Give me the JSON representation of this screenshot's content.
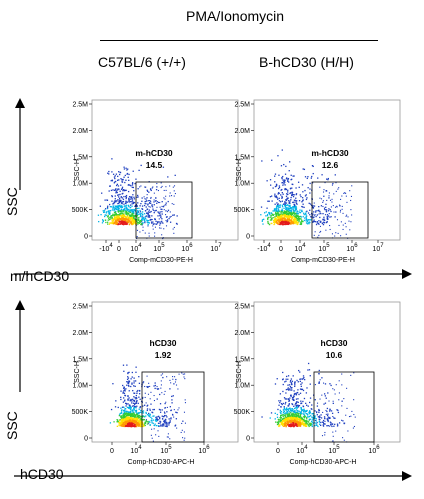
{
  "header": {
    "treatment": "PMA/Ionomycin",
    "col_left": "C57BL/6 (+/+)",
    "col_right": "B-hCD30 (H/H)"
  },
  "row_labels": {
    "top_y": "SSC",
    "top_x": "m/hCD30",
    "bottom_y": "SSC",
    "bottom_x": "hCD30"
  },
  "chart_data": [
    {
      "type": "scatter",
      "panel": "top-left",
      "gate_name": "m-hCD30",
      "gate_percent": "14.5",
      "xlabel": "Comp-mCD30-PE-H",
      "ylabel": "SSC-H",
      "yticks": [
        "2.5M",
        "2.0M",
        "1.5M",
        "1.0M",
        "500K",
        "0"
      ],
      "xticks": [
        "-10^4",
        "0",
        "10^4",
        "10^5",
        "10^6",
        "10^7"
      ]
    },
    {
      "type": "scatter",
      "panel": "top-right",
      "gate_name": "m-hCD30",
      "gate_percent": "12.6",
      "xlabel": "Comp-mCD30-PE-H",
      "ylabel": "SSC-H",
      "yticks": [
        "2.5M",
        "2.0M",
        "1.5M",
        "1.0M",
        "500K",
        "0"
      ],
      "xticks": [
        "-10^4",
        "0",
        "10^4",
        "10^5",
        "10^6",
        "10^7"
      ]
    },
    {
      "type": "scatter",
      "panel": "bottom-left",
      "gate_name": "hCD30",
      "gate_percent": "1.92",
      "xlabel": "Comp-hCD30-APC-H",
      "ylabel": "SSC-H",
      "yticks": [
        "2.5M",
        "2.0M",
        "1.5M",
        "1.0M",
        "500K",
        "0"
      ],
      "xticks": [
        "0",
        "10^4",
        "10^5",
        "10^6"
      ]
    },
    {
      "type": "scatter",
      "panel": "bottom-right",
      "gate_name": "hCD30",
      "gate_percent": "10.6",
      "xlabel": "Comp-hCD30-APC-H",
      "ylabel": "SSC-H",
      "yticks": [
        "2.5M",
        "2.0M",
        "1.5M",
        "1.0M",
        "500K",
        "0"
      ],
      "xticks": [
        "0",
        "10^4",
        "10^5",
        "10^6"
      ]
    }
  ]
}
